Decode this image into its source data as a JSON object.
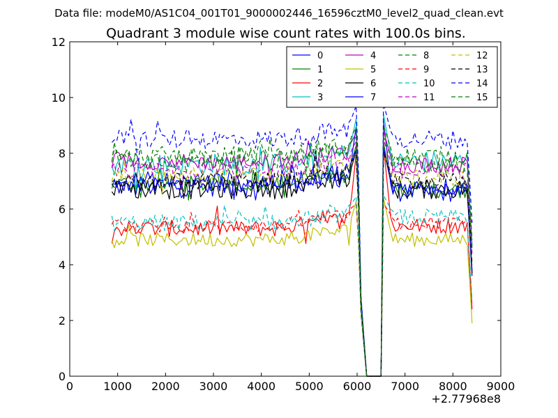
{
  "suptitle": "Data file: modeM0/AS1C04_001T01_9000002446_16596cztM0_level2_quad_clean.evt",
  "chart_data": {
    "type": "line",
    "title": "Quadrant 3 module wise count rates with 100.0s bins.",
    "xlabel": "",
    "ylabel": "",
    "x_offset_label": "+2.77968e8",
    "xlim": [
      0,
      9000
    ],
    "ylim": [
      0,
      12
    ],
    "x_ticks": [
      0,
      1000,
      2000,
      3000,
      4000,
      5000,
      6000,
      7000,
      8000,
      9000
    ],
    "x_tick_labels": [
      "0",
      "1000",
      "2000",
      "3000",
      "4000",
      "5000",
      "6000",
      "7000",
      "8000",
      "9000"
    ],
    "y_ticks": [
      0,
      2,
      4,
      6,
      8,
      10,
      12
    ],
    "y_tick_labels": [
      "0",
      "2",
      "4",
      "6",
      "8",
      "10",
      "12"
    ],
    "legend_position": "top-right",
    "legend_columns": 4,
    "bin_seconds": 100,
    "series": [
      {
        "name": "0",
        "color": "#0000ff",
        "dash": "solid",
        "level_a": 6.8,
        "level_b": 6.6,
        "amp": 0.35,
        "spike": 9.2
      },
      {
        "name": "1",
        "color": "#008000",
        "dash": "solid",
        "level_a": 6.9,
        "level_b": 6.7,
        "amp": 0.3,
        "spike": 8.4
      },
      {
        "name": "2",
        "color": "#ff0000",
        "dash": "solid",
        "level_a": 5.3,
        "level_b": 5.4,
        "amp": 0.3,
        "spike": 8.3
      },
      {
        "name": "3",
        "color": "#00bfbf",
        "dash": "solid",
        "level_a": 7.6,
        "level_b": 7.7,
        "amp": 0.4,
        "spike": 9.4
      },
      {
        "name": "4",
        "color": "#bf00bf",
        "dash": "solid",
        "level_a": 7.7,
        "level_b": 7.6,
        "amp": 0.3,
        "spike": 8.8
      },
      {
        "name": "5",
        "color": "#bfbf00",
        "dash": "solid",
        "level_a": 4.9,
        "level_b": 4.9,
        "amp": 0.25,
        "spike": 6.4
      },
      {
        "name": "6",
        "color": "#000000",
        "dash": "solid",
        "level_a": 6.7,
        "level_b": 6.7,
        "amp": 0.35,
        "spike": 8.2
      },
      {
        "name": "7",
        "color": "#0000ff",
        "dash": "solid",
        "level_a": 7.0,
        "level_b": 6.8,
        "amp": 0.35,
        "spike": 8.2
      },
      {
        "name": "8",
        "color": "#008000",
        "dash": "dashed",
        "level_a": 7.9,
        "level_b": 7.9,
        "amp": 0.35,
        "spike": 9.0
      },
      {
        "name": "9",
        "color": "#ff0000",
        "dash": "dashed",
        "level_a": 5.4,
        "level_b": 5.5,
        "amp": 0.25,
        "spike": 6.2
      },
      {
        "name": "10",
        "color": "#00bfbf",
        "dash": "dashed",
        "level_a": 5.5,
        "level_b": 5.7,
        "amp": 0.3,
        "spike": 6.5
      },
      {
        "name": "11",
        "color": "#bf00bf",
        "dash": "dashed",
        "level_a": 7.4,
        "level_b": 7.4,
        "amp": 0.3,
        "spike": 8.5
      },
      {
        "name": "12",
        "color": "#bfbf00",
        "dash": "dashed",
        "level_a": 7.2,
        "level_b": 7.1,
        "amp": 0.3,
        "spike": 8.0
      },
      {
        "name": "13",
        "color": "#000000",
        "dash": "dashed",
        "level_a": 7.0,
        "level_b": 7.0,
        "amp": 0.3,
        "spike": 8.0
      },
      {
        "name": "14",
        "color": "#0000ff",
        "dash": "dashed",
        "level_a": 8.5,
        "level_b": 8.5,
        "amp": 0.35,
        "spike": 9.8
      },
      {
        "name": "15",
        "color": "#008000",
        "dash": "dashed",
        "level_a": 7.8,
        "level_b": 7.6,
        "amp": 0.35,
        "spike": 8.6
      }
    ]
  }
}
